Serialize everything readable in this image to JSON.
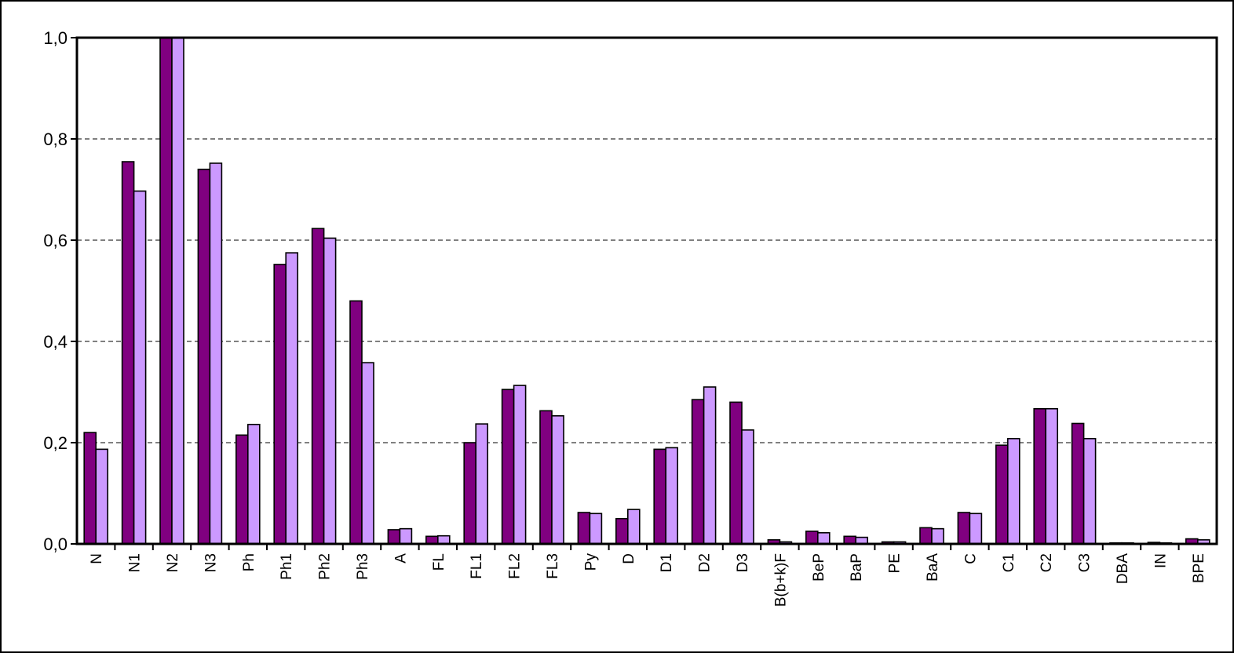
{
  "chart_data": {
    "type": "bar",
    "title": "",
    "xlabel": "",
    "ylabel": "",
    "ylim": [
      0,
      1.0
    ],
    "yticks": [
      "0,0",
      "0,2",
      "0,4",
      "0,6",
      "0,8",
      "1,0"
    ],
    "grid": "horizontal dashed",
    "legend": "none",
    "categories": [
      "N",
      "N1",
      "N2",
      "N3",
      "Ph",
      "Ph1",
      "Ph2",
      "Ph3",
      "A",
      "FL",
      "FL1",
      "FL2",
      "FL3",
      "Py",
      "D",
      "D1",
      "D2",
      "D3",
      "B(b+k)F",
      "BeP",
      "BaP",
      "PE",
      "BaA",
      "C",
      "C1",
      "C2",
      "C3",
      "DBA",
      "IN",
      "BPE"
    ],
    "series": [
      {
        "color": "#800080",
        "values": [
          0.22,
          0.755,
          1.0,
          0.74,
          0.215,
          0.552,
          0.623,
          0.48,
          0.028,
          0.015,
          0.2,
          0.305,
          0.263,
          0.062,
          0.05,
          0.187,
          0.285,
          0.28,
          0.008,
          0.025,
          0.015,
          0.004,
          0.032,
          0.062,
          0.195,
          0.267,
          0.238,
          0.002,
          0.003,
          0.01
        ]
      },
      {
        "color": "#cc99ff",
        "values": [
          0.187,
          0.697,
          1.0,
          0.752,
          0.236,
          0.575,
          0.604,
          0.358,
          0.03,
          0.016,
          0.237,
          0.313,
          0.253,
          0.06,
          0.068,
          0.19,
          0.31,
          0.225,
          0.004,
          0.022,
          0.013,
          0.004,
          0.03,
          0.06,
          0.208,
          0.267,
          0.208,
          0.002,
          0.002,
          0.008
        ]
      }
    ]
  }
}
